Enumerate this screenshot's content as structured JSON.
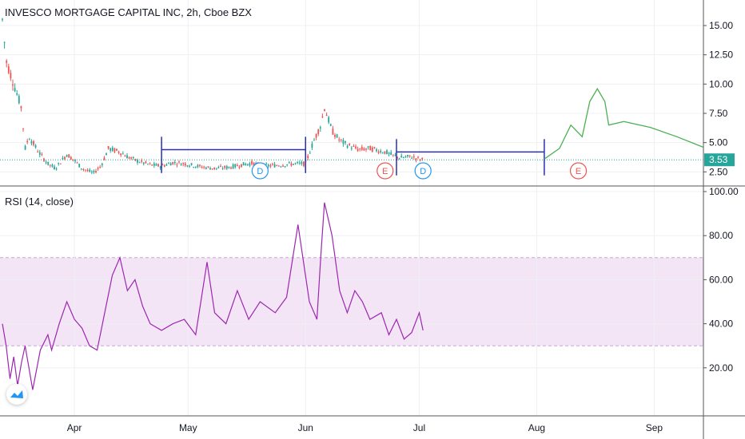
{
  "header": {
    "title": "INVESCO MORTGAGE CAPITAL INC, 2h, Cboe BZX"
  },
  "rsi_header": {
    "title": "RSI (14, close)"
  },
  "colors": {
    "up": "#26a69a",
    "down": "#ef5350",
    "rsi_line": "#9c27b0",
    "rsi_band": "#f3e5f5",
    "drawing_blue": "#2a2fb0",
    "projection_green": "#4caf50",
    "dividend": "#2196f3",
    "earnings": "#ef5350",
    "price_label_bg": "#26a69a",
    "grid": "#eef0f3",
    "axis_text": "#131722"
  },
  "chart_data": [
    {
      "type": "candlestick",
      "title": "INVESCO MORTGAGE CAPITAL INC, 2h, Cboe BZX",
      "x_ticks": [
        "Apr",
        "May",
        "Jun",
        "Jul",
        "Aug",
        "Sep"
      ],
      "y_ticks": [
        "2.50",
        "5.00",
        "7.50",
        "10.00",
        "12.50",
        "15.00"
      ],
      "ylim": [
        1.5,
        16.5
      ],
      "last_price": "3.53",
      "price_path": [
        [
          "Mar 13",
          15.5
        ],
        [
          "Mar 14",
          12.0
        ],
        [
          "Mar 16",
          10.0
        ],
        [
          "Mar 18",
          8.0
        ],
        [
          "Mar 19",
          4.5
        ],
        [
          "Mar 20",
          5.5
        ],
        [
          "Mar 23",
          4.0
        ],
        [
          "Mar 25",
          3.2
        ],
        [
          "Mar 27",
          2.8
        ],
        [
          "Mar 30",
          4.0
        ],
        [
          "Apr 1",
          3.5
        ],
        [
          "Apr 3",
          2.8
        ],
        [
          "Apr 6",
          2.4
        ],
        [
          "Apr 8",
          3.0
        ],
        [
          "Apr 10",
          4.5
        ],
        [
          "Apr 13",
          4.2
        ],
        [
          "Apr 15",
          3.8
        ],
        [
          "Apr 17",
          3.5
        ],
        [
          "Apr 21",
          3.1
        ],
        [
          "Apr 24",
          3.0
        ],
        [
          "Apr 27",
          3.3
        ],
        [
          "Apr 30",
          3.2
        ],
        [
          "May 4",
          2.95
        ],
        [
          "May 8",
          2.8
        ],
        [
          "May 12",
          2.9
        ],
        [
          "May 15",
          3.1
        ],
        [
          "May 18",
          3.25
        ],
        [
          "May 21",
          3.0
        ],
        [
          "May 26",
          3.1
        ],
        [
          "May 29",
          3.2
        ],
        [
          "Jun 1",
          3.2
        ],
        [
          "Jun 3",
          5.0
        ],
        [
          "Jun 5",
          6.5
        ],
        [
          "Jun 6",
          8.0
        ],
        [
          "Jun 8",
          6.0
        ],
        [
          "Jun 10",
          5.2
        ],
        [
          "Jun 12",
          4.8
        ],
        [
          "Jun 15",
          4.4
        ],
        [
          "Jun 18",
          4.5
        ],
        [
          "Jun 22",
          4.2
        ],
        [
          "Jun 24",
          3.9
        ],
        [
          "Jun 26",
          3.7
        ],
        [
          "Jun 29",
          3.8
        ],
        [
          "Jul 1",
          3.6
        ],
        [
          "Jul 2",
          3.53
        ]
      ],
      "projection_path": [
        [
          "Aug 3",
          3.6
        ],
        [
          "Aug 7",
          4.5
        ],
        [
          "Aug 10",
          6.5
        ],
        [
          "Aug 13",
          5.5
        ],
        [
          "Aug 15",
          8.5
        ],
        [
          "Aug 17",
          9.6
        ],
        [
          "Aug 19",
          8.5
        ],
        [
          "Aug 20",
          6.5
        ],
        [
          "Aug 24",
          6.8
        ],
        [
          "Aug 31",
          6.3
        ],
        [
          "Sep 7",
          5.5
        ],
        [
          "Sep 14",
          4.6
        ]
      ],
      "drawings": [
        {
          "from": "Apr 24",
          "to": "Jun 1",
          "value": 4.4
        },
        {
          "from": "Jun 25",
          "to": "Aug 3",
          "value": 4.2
        }
      ],
      "events": [
        {
          "date": "May 20",
          "label": "D"
        },
        {
          "date": "Jun 22",
          "label": "E"
        },
        {
          "date": "Jul 2",
          "label": "D"
        },
        {
          "date": "Aug 12",
          "label": "E"
        }
      ]
    },
    {
      "type": "line",
      "title": "RSI (14, close)",
      "y_ticks": [
        "20.00",
        "40.00",
        "60.00",
        "80.00",
        "100.00"
      ],
      "ylim": [
        0,
        100
      ],
      "band": [
        30,
        70
      ],
      "series": [
        {
          "values": [
            [
              "Mar 13",
              40
            ],
            [
              "Mar 14",
              30
            ],
            [
              "Mar 15",
              15
            ],
            [
              "Mar 16",
              25
            ],
            [
              "Mar 17",
              12
            ],
            [
              "Mar 18",
              22
            ],
            [
              "Mar 19",
              30
            ],
            [
              "Mar 20",
              20
            ],
            [
              "Mar 21",
              10
            ],
            [
              "Mar 23",
              28
            ],
            [
              "Mar 25",
              35
            ],
            [
              "Mar 26",
              28
            ],
            [
              "Mar 28",
              40
            ],
            [
              "Mar 30",
              50
            ],
            [
              "Apr 1",
              42
            ],
            [
              "Apr 3",
              38
            ],
            [
              "Apr 5",
              30
            ],
            [
              "Apr 7",
              28
            ],
            [
              "Apr 9",
              45
            ],
            [
              "Apr 11",
              62
            ],
            [
              "Apr 13",
              70
            ],
            [
              "Apr 15",
              55
            ],
            [
              "Apr 17",
              60
            ],
            [
              "Apr 19",
              48
            ],
            [
              "Apr 21",
              40
            ],
            [
              "Apr 24",
              37
            ],
            [
              "Apr 27",
              40
            ],
            [
              "Apr 30",
              42
            ],
            [
              "May 3",
              35
            ],
            [
              "May 6",
              68
            ],
            [
              "May 8",
              45
            ],
            [
              "May 11",
              40
            ],
            [
              "May 14",
              55
            ],
            [
              "May 17",
              42
            ],
            [
              "May 20",
              50
            ],
            [
              "May 24",
              45
            ],
            [
              "May 27",
              52
            ],
            [
              "May 30",
              85
            ],
            [
              "Jun 2",
              50
            ],
            [
              "Jun 4",
              42
            ],
            [
              "Jun 5",
              70
            ],
            [
              "Jun 6",
              95
            ],
            [
              "Jun 8",
              80
            ],
            [
              "Jun 10",
              55
            ],
            [
              "Jun 12",
              45
            ],
            [
              "Jun 14",
              55
            ],
            [
              "Jun 16",
              50
            ],
            [
              "Jun 18",
              42
            ],
            [
              "Jun 21",
              45
            ],
            [
              "Jun 23",
              35
            ],
            [
              "Jun 25",
              42
            ],
            [
              "Jun 27",
              33
            ],
            [
              "Jun 29",
              36
            ],
            [
              "Jul 1",
              45
            ],
            [
              "Jul 2",
              37
            ]
          ]
        }
      ]
    }
  ]
}
